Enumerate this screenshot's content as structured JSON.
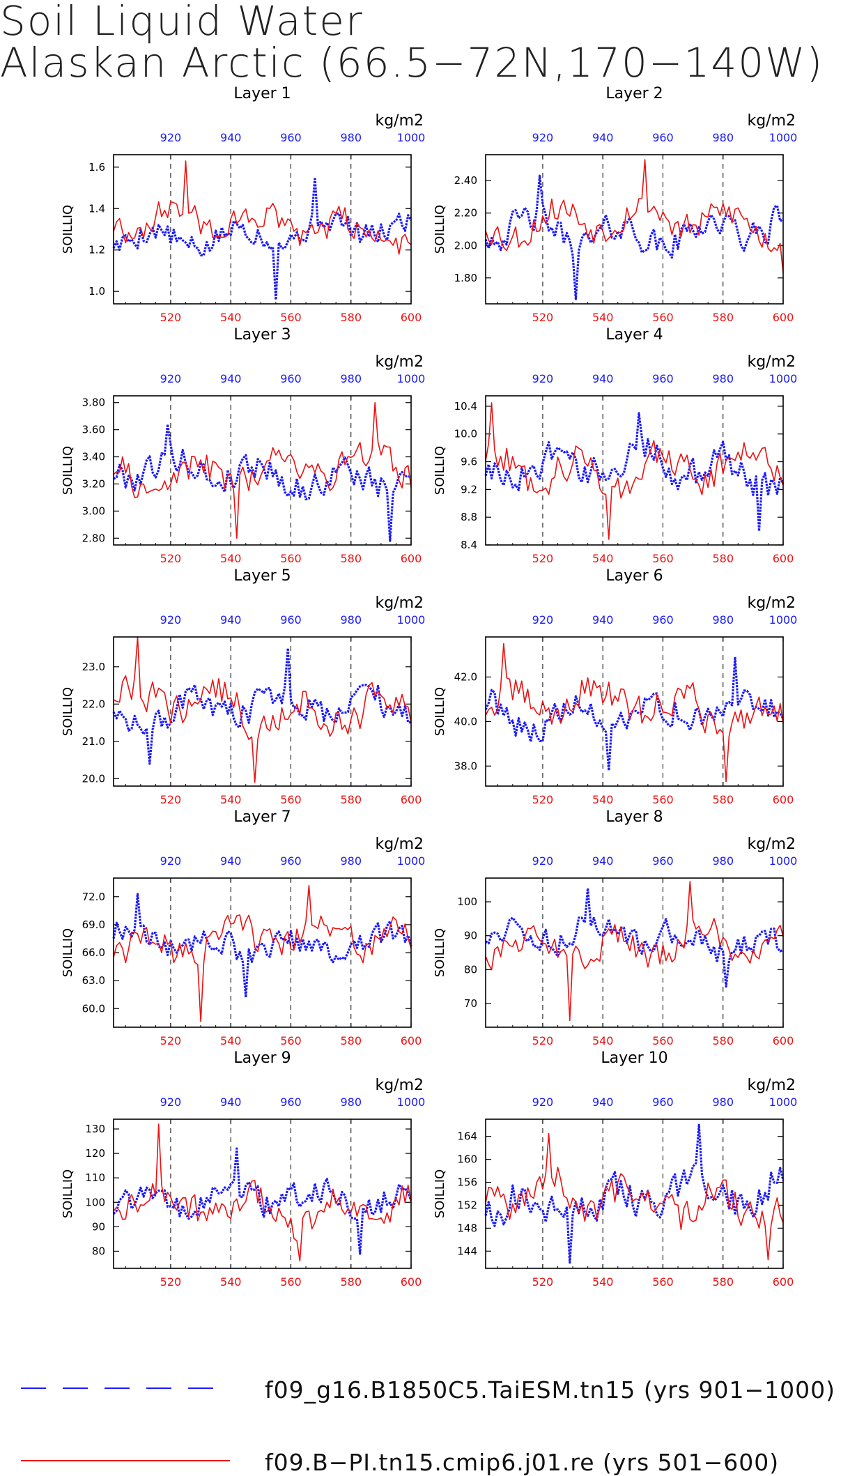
{
  "title": {
    "line1": "Soil Liquid Water",
    "line2": "Alaskan Arctic (66.5−72N,170−140W)"
  },
  "colors": {
    "series_blue": "#1a1aff",
    "series_red": "#ee1111",
    "axis": "#000000"
  },
  "legend": [
    {
      "label": "f09_g16.B1850C5.TaiESM.tn15 (yrs 901−1000)",
      "color": "#1a1aff",
      "style": "dashed"
    },
    {
      "label": "f09.B−PI.tn15.cmip6.j01.re (yrs 501−600)",
      "color": "#ee1111",
      "style": "solid"
    }
  ],
  "chart_data": [
    {
      "type": "line",
      "title": "Layer 1",
      "ylabel": "SOILLIQ",
      "units": "kg/m2",
      "yticks": [
        1.0,
        1.2,
        1.4,
        1.6
      ],
      "ytick_labels": [
        "1.0",
        "1.2",
        "1.4",
        "1.6"
      ],
      "ylim": [
        0.94,
        1.66
      ],
      "x_bottom_ticks": [
        520,
        540,
        560,
        580,
        600
      ],
      "x_bottom_range": [
        501,
        600
      ],
      "x_top_ticks": [
        920,
        940,
        960,
        980,
        1000
      ],
      "x_top_range": [
        901,
        1000
      ],
      "series": [
        {
          "color": "#1a1aff",
          "base": 1.28,
          "amp": 0.08,
          "min": 0.96,
          "max": 1.55
        },
        {
          "color": "#ee1111",
          "base": 1.32,
          "amp": 0.09,
          "min": 1.18,
          "max": 1.63
        }
      ]
    },
    {
      "type": "line",
      "title": "Layer 2",
      "ylabel": "SOILLIQ",
      "units": "kg/m2",
      "yticks": [
        1.8,
        2.0,
        2.2,
        2.4
      ],
      "ytick_labels": [
        "1.80",
        "2.00",
        "2.20",
        "2.40"
      ],
      "ylim": [
        1.64,
        2.56
      ],
      "x_bottom_ticks": [
        520,
        540,
        560,
        580,
        600
      ],
      "x_bottom_range": [
        501,
        600
      ],
      "x_top_ticks": [
        920,
        940,
        960,
        980,
        1000
      ],
      "x_top_range": [
        901,
        1000
      ],
      "series": [
        {
          "color": "#1a1aff",
          "base": 2.1,
          "amp": 0.12,
          "min": 1.67,
          "max": 2.43
        },
        {
          "color": "#ee1111",
          "base": 2.14,
          "amp": 0.13,
          "min": 1.83,
          "max": 2.53
        }
      ]
    },
    {
      "type": "line",
      "title": "Layer 3",
      "ylabel": "SOILLIQ",
      "units": "kg/m2",
      "yticks": [
        2.8,
        3.0,
        3.2,
        3.4,
        3.6,
        3.8
      ],
      "ytick_labels": [
        "2.80",
        "3.00",
        "3.20",
        "3.40",
        "3.60",
        "3.80"
      ],
      "ylim": [
        2.75,
        3.85
      ],
      "x_bottom_ticks": [
        520,
        540,
        560,
        580,
        600
      ],
      "x_bottom_range": [
        501,
        600
      ],
      "x_top_ticks": [
        920,
        940,
        960,
        980,
        1000
      ],
      "x_top_range": [
        901,
        1000
      ],
      "series": [
        {
          "color": "#1a1aff",
          "base": 3.28,
          "amp": 0.14,
          "min": 2.78,
          "max": 3.64
        },
        {
          "color": "#ee1111",
          "base": 3.3,
          "amp": 0.16,
          "min": 2.8,
          "max": 3.8
        }
      ]
    },
    {
      "type": "line",
      "title": "Layer 4",
      "ylabel": "SOILLIQ",
      "units": "kg/m2",
      "yticks": [
        8.4,
        8.8,
        9.2,
        9.6,
        10.0,
        10.4
      ],
      "ytick_labels": [
        "8.4",
        "8.8",
        "9.2",
        "9.6",
        "10.0",
        "10.4"
      ],
      "ylim": [
        8.4,
        10.55
      ],
      "x_bottom_ticks": [
        520,
        540,
        560,
        580,
        600
      ],
      "x_bottom_range": [
        501,
        600
      ],
      "x_top_ticks": [
        920,
        940,
        960,
        980,
        1000
      ],
      "x_top_range": [
        901,
        1000
      ],
      "series": [
        {
          "color": "#1a1aff",
          "base": 9.5,
          "amp": 0.3,
          "min": 8.6,
          "max": 10.3
        },
        {
          "color": "#ee1111",
          "base": 9.55,
          "amp": 0.32,
          "min": 8.48,
          "max": 10.45
        }
      ]
    },
    {
      "type": "line",
      "title": "Layer 5",
      "ylabel": "SOILLIQ",
      "units": "kg/m2",
      "yticks": [
        20.0,
        21.0,
        22.0,
        23.0
      ],
      "ytick_labels": [
        "20.0",
        "21.0",
        "22.0",
        "23.0"
      ],
      "ylim": [
        19.8,
        23.8
      ],
      "x_bottom_ticks": [
        520,
        540,
        560,
        580,
        600
      ],
      "x_bottom_range": [
        501,
        600
      ],
      "x_top_ticks": [
        920,
        940,
        960,
        980,
        1000
      ],
      "x_top_range": [
        901,
        1000
      ],
      "series": [
        {
          "color": "#1a1aff",
          "base": 21.9,
          "amp": 0.5,
          "min": 20.4,
          "max": 23.5
        },
        {
          "color": "#ee1111",
          "base": 22.0,
          "amp": 0.6,
          "min": 19.9,
          "max": 23.8
        }
      ]
    },
    {
      "type": "line",
      "title": "Layer 6",
      "ylabel": "SOILLIQ",
      "units": "kg/m2",
      "yticks": [
        38.0,
        40.0,
        42.0
      ],
      "ytick_labels": [
        "38.0",
        "40.0",
        "42.0"
      ],
      "ylim": [
        37.1,
        43.8
      ],
      "x_bottom_ticks": [
        520,
        540,
        560,
        580,
        600
      ],
      "x_bottom_range": [
        501,
        600
      ],
      "x_top_ticks": [
        920,
        940,
        960,
        980,
        1000
      ],
      "x_top_range": [
        901,
        1000
      ],
      "series": [
        {
          "color": "#1a1aff",
          "base": 40.4,
          "amp": 0.9,
          "min": 37.8,
          "max": 42.9
        },
        {
          "color": "#ee1111",
          "base": 40.6,
          "amp": 1.0,
          "min": 37.3,
          "max": 43.5
        }
      ]
    },
    {
      "type": "line",
      "title": "Layer 7",
      "ylabel": "SOILLIQ",
      "units": "kg/m2",
      "yticks": [
        60.0,
        63.0,
        66.0,
        69.0,
        72.0
      ],
      "ytick_labels": [
        "60.0",
        "63.0",
        "66.0",
        "69.0",
        "72.0"
      ],
      "ylim": [
        58.0,
        74.0
      ],
      "x_bottom_ticks": [
        520,
        540,
        560,
        580,
        600
      ],
      "x_bottom_range": [
        501,
        600
      ],
      "x_top_ticks": [
        920,
        940,
        960,
        980,
        1000
      ],
      "x_top_range": [
        901,
        1000
      ],
      "series": [
        {
          "color": "#1a1aff",
          "base": 67.0,
          "amp": 1.8,
          "min": 61.2,
          "max": 72.3
        },
        {
          "color": "#ee1111",
          "base": 67.2,
          "amp": 2.2,
          "min": 58.6,
          "max": 73.2
        }
      ]
    },
    {
      "type": "line",
      "title": "Layer 8",
      "ylabel": "SOILLIQ",
      "units": "kg/m2",
      "yticks": [
        70,
        80,
        90,
        100
      ],
      "ytick_labels": [
        "70",
        "80",
        "90",
        "100"
      ],
      "ylim": [
        63,
        107
      ],
      "x_bottom_ticks": [
        520,
        540,
        560,
        580,
        600
      ],
      "x_bottom_range": [
        501,
        600
      ],
      "x_top_ticks": [
        920,
        940,
        960,
        980,
        1000
      ],
      "x_top_range": [
        901,
        1000
      ],
      "series": [
        {
          "color": "#1a1aff",
          "base": 89,
          "amp": 5,
          "min": 75,
          "max": 104
        },
        {
          "color": "#ee1111",
          "base": 88,
          "amp": 6,
          "min": 65,
          "max": 106
        }
      ]
    },
    {
      "type": "line",
      "title": "Layer 9",
      "ylabel": "SOILLIQ",
      "units": "kg/m2",
      "yticks": [
        80,
        90,
        100,
        110,
        120,
        130
      ],
      "ytick_labels": [
        "80",
        "90",
        "100",
        "110",
        "120",
        "130"
      ],
      "ylim": [
        73,
        134
      ],
      "x_bottom_ticks": [
        520,
        540,
        560,
        580,
        600
      ],
      "x_bottom_range": [
        501,
        600
      ],
      "x_top_ticks": [
        920,
        940,
        960,
        980,
        1000
      ],
      "x_top_range": [
        901,
        1000
      ],
      "series": [
        {
          "color": "#1a1aff",
          "base": 100,
          "amp": 7,
          "min": 79,
          "max": 122
        },
        {
          "color": "#ee1111",
          "base": 99,
          "amp": 9,
          "min": 76,
          "max": 132
        }
      ]
    },
    {
      "type": "line",
      "title": "Layer 10",
      "ylabel": "SOILLIQ",
      "units": "kg/m2",
      "yticks": [
        144,
        148,
        152,
        156,
        160,
        164
      ],
      "ytick_labels": [
        "144",
        "148",
        "152",
        "156",
        "160",
        "164"
      ],
      "ylim": [
        141,
        167
      ],
      "x_bottom_ticks": [
        520,
        540,
        560,
        580,
        600
      ],
      "x_bottom_range": [
        501,
        600
      ],
      "x_top_ticks": [
        920,
        940,
        960,
        980,
        1000
      ],
      "x_top_range": [
        901,
        1000
      ],
      "series": [
        {
          "color": "#1a1aff",
          "base": 153,
          "amp": 4,
          "min": 142,
          "max": 166
        },
        {
          "color": "#ee1111",
          "base": 153,
          "amp": 4,
          "min": 142.5,
          "max": 164.5
        }
      ]
    }
  ]
}
